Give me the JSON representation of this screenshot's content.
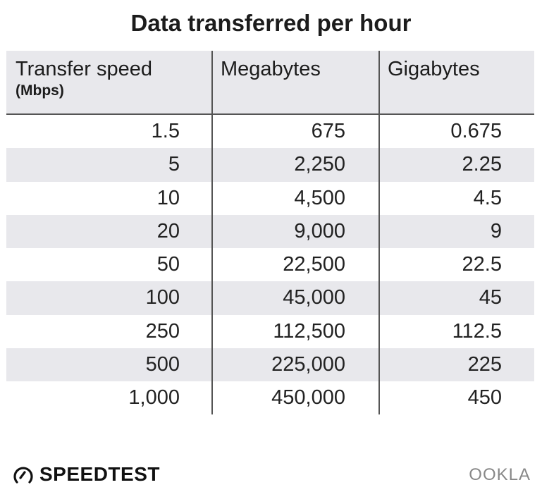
{
  "chart_data": {
    "type": "table",
    "title": "Data transferred per hour",
    "columns": [
      {
        "label": "Transfer speed",
        "sublabel": "(Mbps)"
      },
      {
        "label": "Megabytes"
      },
      {
        "label": "Gigabytes"
      }
    ],
    "rows": [
      [
        "1.5",
        "675",
        "0.675"
      ],
      [
        "5",
        "2,250",
        "2.25"
      ],
      [
        "10",
        "4,500",
        "4.5"
      ],
      [
        "20",
        "9,000",
        "9"
      ],
      [
        "50",
        "22,500",
        "22.5"
      ],
      [
        "100",
        "45,000",
        "45"
      ],
      [
        "250",
        "112,500",
        "112.5"
      ],
      [
        "500",
        "225,000",
        "225"
      ],
      [
        "1,000",
        "450,000",
        "450"
      ]
    ]
  },
  "branding": {
    "left_logo": "SPEEDTEST",
    "right_logo": "OOKLA"
  },
  "colors": {
    "stripe": "#e8e8ec",
    "rule": "#555555"
  }
}
